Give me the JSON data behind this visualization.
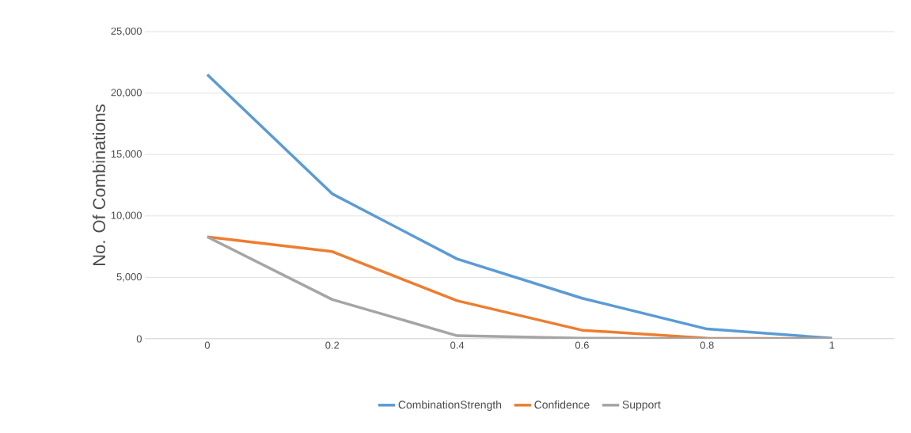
{
  "chart_data": {
    "type": "line",
    "ylabel": "No. Of Combinations",
    "categories": [
      "0",
      "0.2",
      "0.4",
      "0.6",
      "0.8",
      "1"
    ],
    "series": [
      {
        "name": "CombinationStrength",
        "color": "#5b9bd5",
        "values": [
          21500,
          11800,
          6500,
          3300,
          800,
          50
        ]
      },
      {
        "name": "Confidence",
        "color": "#ed7d31",
        "values": [
          8300,
          7100,
          3100,
          700,
          50,
          0
        ]
      },
      {
        "name": "Support",
        "color": "#a5a5a5",
        "values": [
          8300,
          3200,
          250,
          50,
          0,
          0
        ]
      }
    ],
    "ylim": [
      0,
      25000
    ],
    "yticks": [
      {
        "value": 0,
        "label": "0"
      },
      {
        "value": 5000,
        "label": "5,000"
      },
      {
        "value": 10000,
        "label": "10,000"
      },
      {
        "value": 15000,
        "label": "15,000"
      },
      {
        "value": 20000,
        "label": "20,000"
      },
      {
        "value": 25000,
        "label": "25,000"
      }
    ],
    "grid": "y",
    "legend": "bottom",
    "marker": "none",
    "line_style": "solid"
  }
}
